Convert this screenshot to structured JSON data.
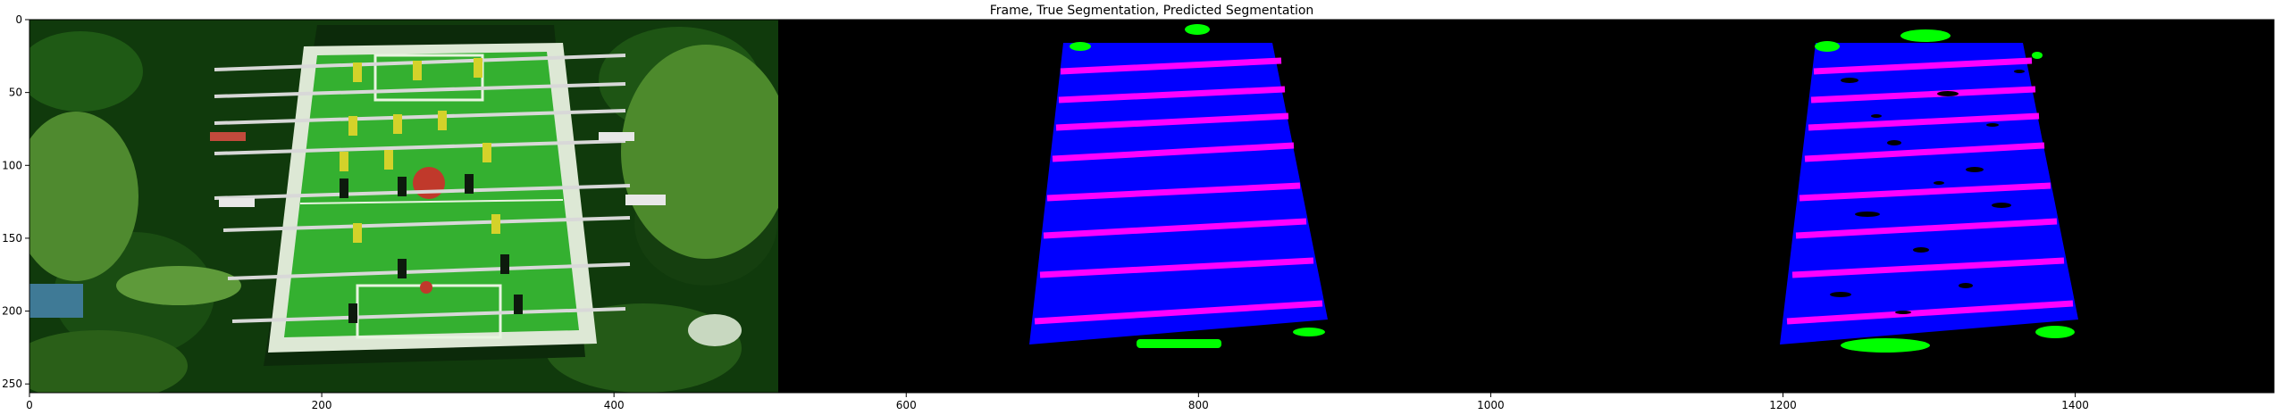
{
  "chart_data": {
    "type": "image",
    "title": "Frame, True Segmentation, Predicted Segmentation",
    "xlim": [
      0,
      1536
    ],
    "ylim": [
      256,
      0
    ],
    "xticks": [
      0,
      200,
      400,
      600,
      800,
      1000,
      1200,
      1400
    ],
    "yticks": [
      0,
      50,
      100,
      150,
      200,
      250
    ],
    "panels": [
      {
        "name": "Frame",
        "x_range": [
          0,
          512
        ]
      },
      {
        "name": "True Segmentation",
        "x_range": [
          512,
          1024
        ]
      },
      {
        "name": "Predicted Segmentation",
        "x_range": [
          1024,
          1536
        ]
      }
    ],
    "segmentation_classes": [
      {
        "name": "table",
        "color": "#0000ff"
      },
      {
        "name": "rods",
        "color": "#ff00ff"
      },
      {
        "name": "players",
        "color": "#00ff00"
      }
    ],
    "background_color": "#000000"
  }
}
